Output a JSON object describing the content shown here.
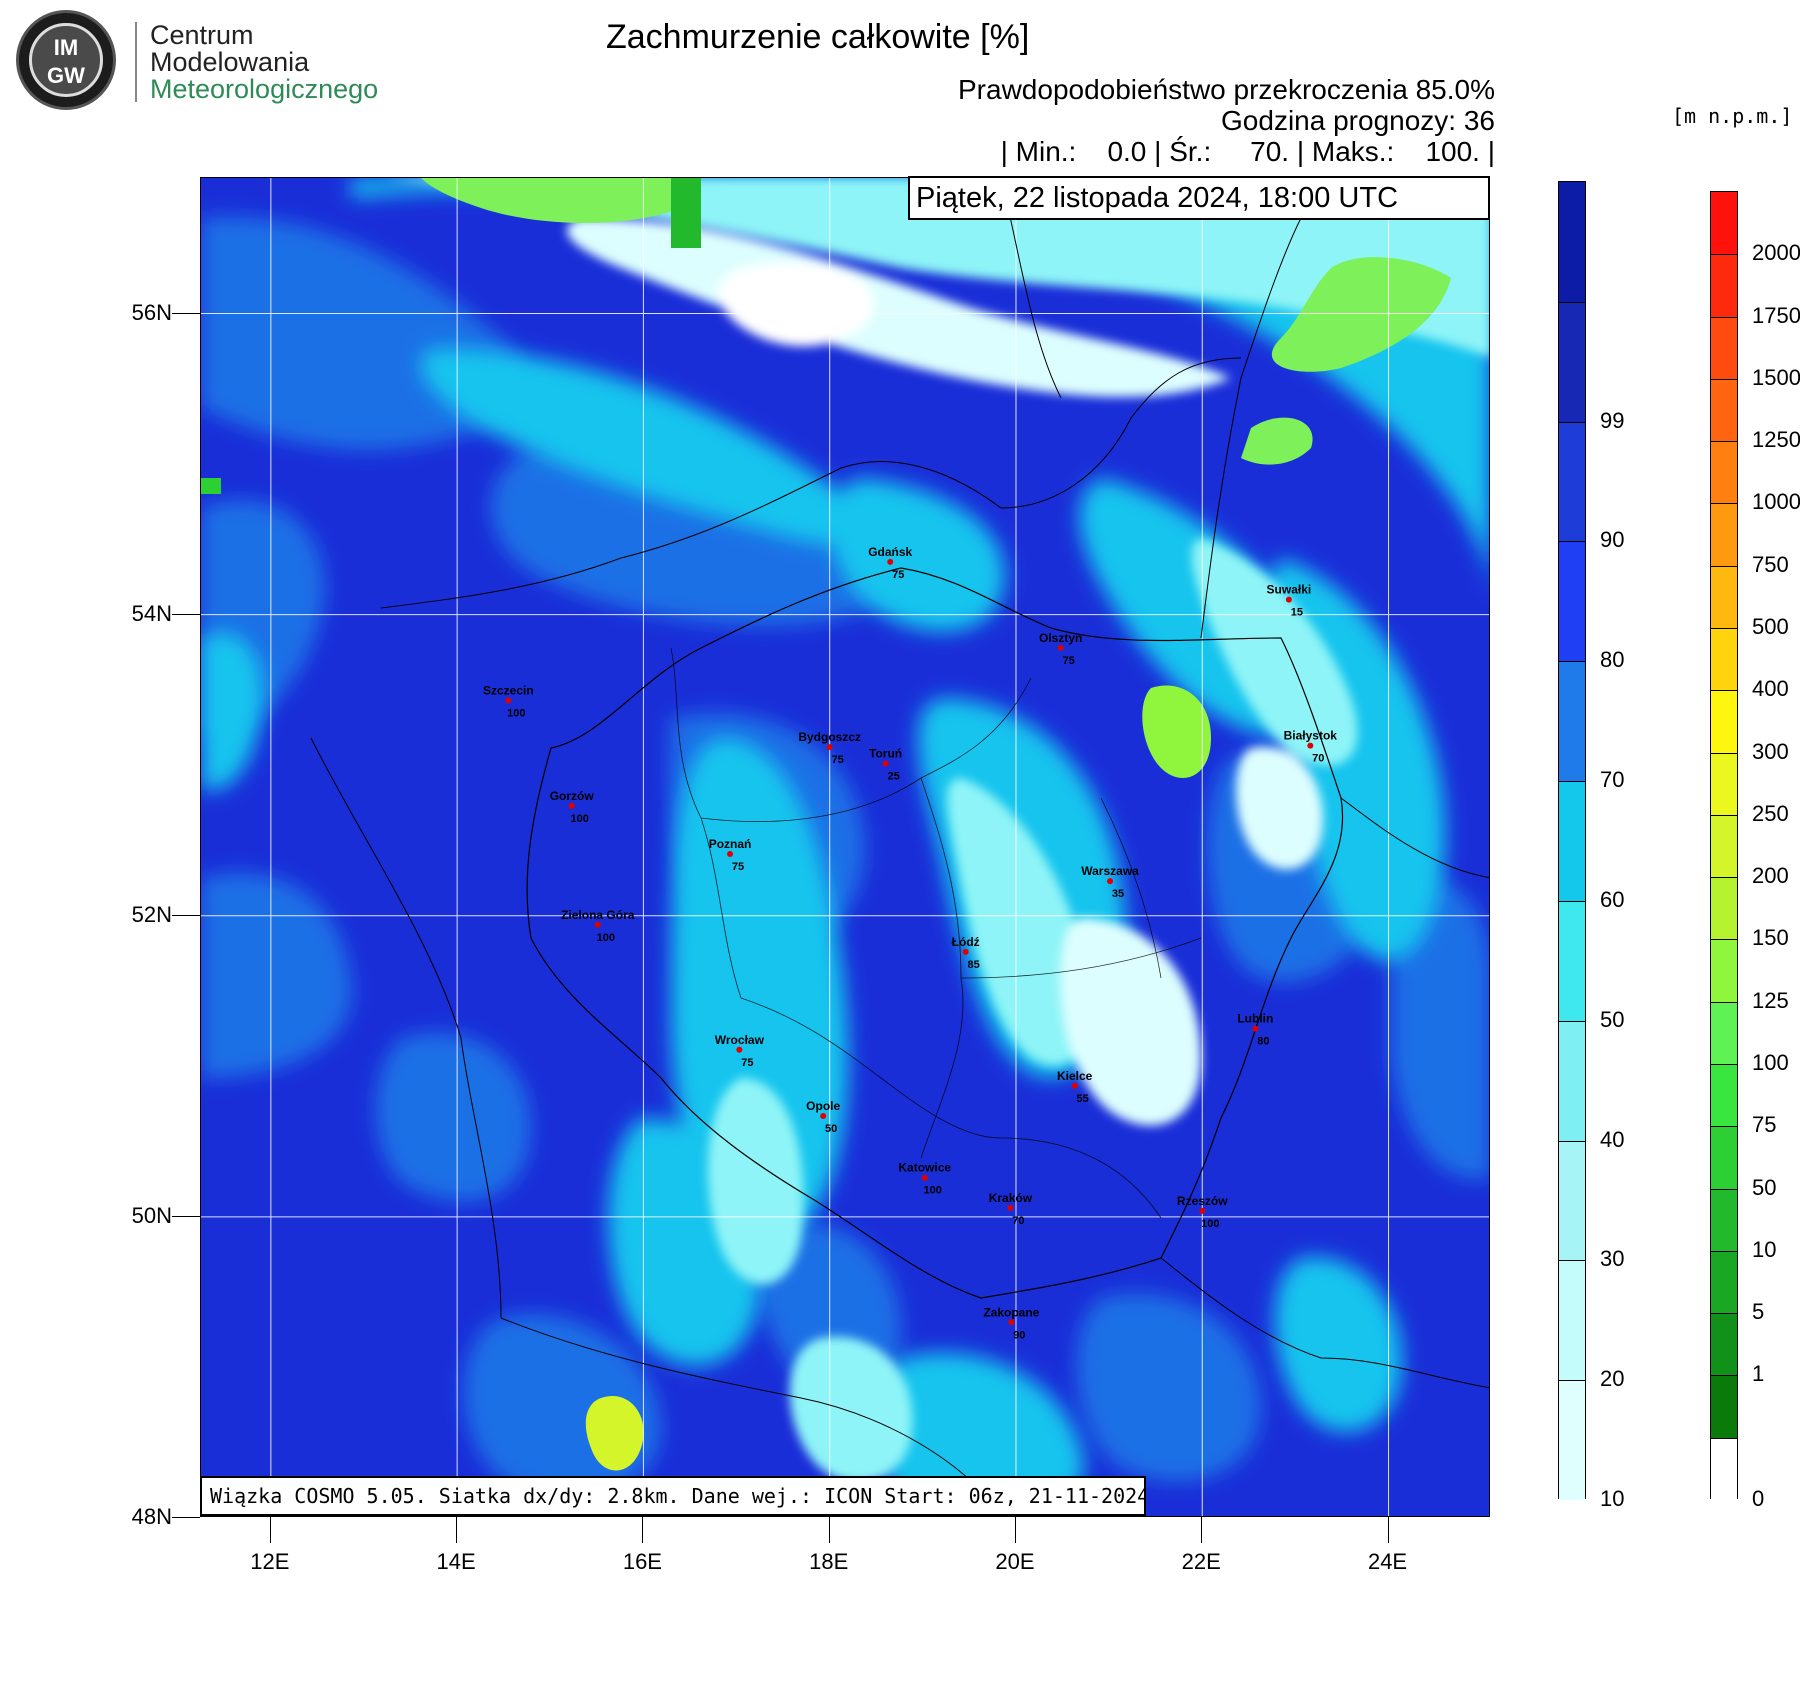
{
  "header": {
    "logo": {
      "badge": "IM GW",
      "line1": "Centrum",
      "line2": "Modelowania",
      "line3": "Meteorologicznego"
    },
    "title": "Zachmurzenie całkowite [%]",
    "probability": "Prawdopodobieństwo przekroczenia 85.0%",
    "forecast_hour": "Godzina prognozy: 36",
    "stats": "| Min.:    0.0 | Śr.:     70. | Maks.:    100. |",
    "units": "[m n.p.m.]",
    "date": "Piątek, 22 listopada 2024, 18:00 UTC",
    "footer": "Wiązka COSMO 5.05. Siatka dx/dy: 2.8km. Dane wej.: ICON Start: 06z, 21-11-2024"
  },
  "map": {
    "lon_range": [
      11.25,
      25.1
    ],
    "lat_range": [
      48.0,
      56.9
    ],
    "lon_ticks": [
      "12E",
      "14E",
      "16E",
      "18E",
      "20E",
      "22E",
      "24E"
    ],
    "lon_tick_values": [
      12,
      14,
      16,
      18,
      20,
      22,
      24
    ],
    "lat_ticks": [
      "48N",
      "50N",
      "52N",
      "54N",
      "56N"
    ],
    "lat_tick_values": [
      48,
      50,
      52,
      54,
      56
    ],
    "cities": [
      {
        "name": "Gdańsk",
        "value": "75",
        "lon": 18.65,
        "lat": 54.35
      },
      {
        "name": "Suwałki",
        "value": "15",
        "lon": 22.93,
        "lat": 54.1
      },
      {
        "name": "Olsztyn",
        "value": "75",
        "lon": 20.48,
        "lat": 53.78
      },
      {
        "name": "Szczecin",
        "value": "100",
        "lon": 14.55,
        "lat": 53.43
      },
      {
        "name": "Bydgoszcz",
        "value": "75",
        "lon": 18.0,
        "lat": 53.12
      },
      {
        "name": "Toruń",
        "value": "25",
        "lon": 18.6,
        "lat": 53.01
      },
      {
        "name": "Białystok",
        "value": "70",
        "lon": 23.16,
        "lat": 53.13
      },
      {
        "name": "Gorzów",
        "value": "100",
        "lon": 15.23,
        "lat": 52.73
      },
      {
        "name": "Poznań",
        "value": "75",
        "lon": 16.93,
        "lat": 52.41
      },
      {
        "name": "Warszawa",
        "value": "35",
        "lon": 21.01,
        "lat": 52.23
      },
      {
        "name": "Zielona Góra",
        "value": "100",
        "lon": 15.51,
        "lat": 51.94
      },
      {
        "name": "Łódź",
        "value": "85",
        "lon": 19.46,
        "lat": 51.76
      },
      {
        "name": "Lublin",
        "value": "80",
        "lon": 22.57,
        "lat": 51.25
      },
      {
        "name": "Wrocław",
        "value": "75",
        "lon": 17.03,
        "lat": 51.11
      },
      {
        "name": "Kielce",
        "value": "55",
        "lon": 20.63,
        "lat": 50.87
      },
      {
        "name": "Opole",
        "value": "50",
        "lon": 17.93,
        "lat": 50.67
      },
      {
        "name": "Katowice",
        "value": "100",
        "lon": 19.02,
        "lat": 50.26
      },
      {
        "name": "Kraków",
        "value": "70",
        "lon": 19.94,
        "lat": 50.06
      },
      {
        "name": "Rzeszów",
        "value": "100",
        "lon": 22.0,
        "lat": 50.04
      },
      {
        "name": "Zakopane",
        "value": "90",
        "lon": 19.95,
        "lat": 49.3
      }
    ]
  },
  "cloud_colorbar": {
    "labels": [
      "10",
      "20",
      "30",
      "40",
      "50",
      "60",
      "70",
      "80",
      "90",
      "99"
    ],
    "colors": [
      "#dfffff",
      "#c4fbfb",
      "#a6f4f6",
      "#7ef0f3",
      "#3ee8ee",
      "#14c8ec",
      "#1f7bea",
      "#1f3ff5",
      "#1e3cd8",
      "#1628b4",
      "#0d1ca6"
    ]
  },
  "terrain_colorbar": {
    "labels": [
      "0",
      "1",
      "5",
      "10",
      "50",
      "75",
      "100",
      "125",
      "150",
      "200",
      "250",
      "300",
      "400",
      "500",
      "750",
      "1000",
      "1250",
      "1500",
      "1750",
      "2000"
    ],
    "colors": [
      "#ffffff",
      "#0a7a0a",
      "#11911a",
      "#1aa724",
      "#22b92c",
      "#2ccf34",
      "#39e53f",
      "#5ef255",
      "#8ff53d",
      "#b5f331",
      "#d4f52a",
      "#ecf61f",
      "#fff60f",
      "#ffd40d",
      "#ffb80e",
      "#ff9a10",
      "#ff7f11",
      "#ff6511",
      "#ff4a10",
      "#ff2a0e",
      "#ff120c"
    ]
  },
  "colors": {
    "deep_blue": "#1a2ed8",
    "mid_blue": "#1f6fe6",
    "cyan": "#18c4ee",
    "light_cyan": "#8ef4f7",
    "white_cyan": "#ddfefe",
    "green": "#7df05a"
  }
}
